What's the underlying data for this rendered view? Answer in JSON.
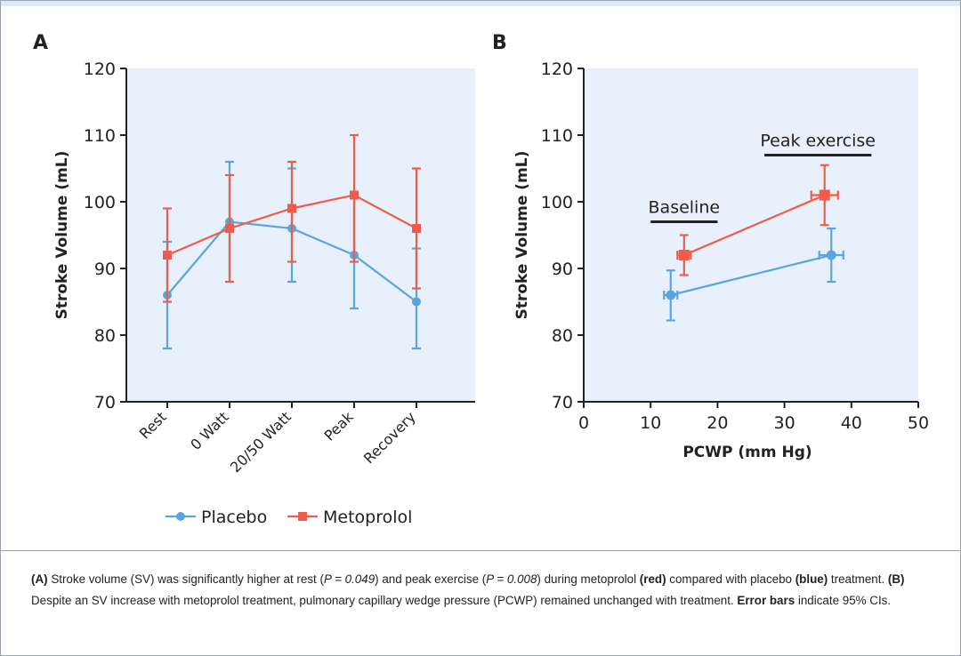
{
  "colors": {
    "placebo": "#5aa6dc",
    "metoprolol": "#ee5c4a",
    "plot_bg": "#e8f1fb",
    "axis": "#222222"
  },
  "chart_data": [
    {
      "panel": "A",
      "type": "line",
      "ylabel": "Stroke Volume (mL)",
      "xlabel": "",
      "ylim": [
        70,
        120
      ],
      "yticks": [
        70,
        80,
        90,
        100,
        110,
        120
      ],
      "categories": [
        "Rest",
        "0 Watt",
        "20/50 Watt",
        "Peak",
        "Recovery"
      ],
      "series": [
        {
          "name": "Placebo",
          "color_key": "placebo",
          "marker": "circle",
          "values": [
            86,
            97,
            96,
            92,
            85
          ],
          "err_low": [
            78,
            88,
            88,
            84,
            78
          ],
          "err_high": [
            94,
            106,
            105,
            101,
            93
          ]
        },
        {
          "name": "Metoprolol",
          "color_key": "metoprolol",
          "marker": "square",
          "values": [
            92,
            96,
            99,
            101,
            96
          ],
          "err_low": [
            85,
            88,
            91,
            91,
            87
          ],
          "err_high": [
            99,
            104,
            106,
            110,
            105
          ]
        }
      ],
      "legend": {
        "position": "bottom",
        "entries": [
          "Placebo",
          "Metoprolol"
        ]
      }
    },
    {
      "panel": "B",
      "type": "scatter",
      "ylabel": "Stroke Volume (mL)",
      "xlabel": "PCWP (mm Hg)",
      "xlim": [
        0,
        50
      ],
      "xticks": [
        0,
        10,
        20,
        30,
        40,
        50
      ],
      "ylim": [
        70,
        120
      ],
      "yticks": [
        70,
        80,
        90,
        100,
        110,
        120
      ],
      "series": [
        {
          "name": "Placebo",
          "color_key": "placebo",
          "marker": "circle",
          "points": [
            {
              "x": 13,
              "y": 86,
              "x_err": [
                12,
                14
              ],
              "y_err": [
                82.2,
                89.7
              ]
            },
            {
              "x": 37,
              "y": 92,
              "x_err": [
                35.2,
                38.8
              ],
              "y_err": [
                88,
                96
              ]
            }
          ]
        },
        {
          "name": "Metoprolol",
          "color_key": "metoprolol",
          "marker": "square",
          "points": [
            {
              "x": 15,
              "y": 92,
              "x_err": [
                14,
                16
              ],
              "y_err": [
                89,
                95
              ]
            },
            {
              "x": 36,
              "y": 101,
              "x_err": [
                34,
                38
              ],
              "y_err": [
                96.5,
                105.5
              ]
            }
          ]
        }
      ],
      "annotations": [
        {
          "label": "Baseline",
          "x_range": [
            10,
            20
          ],
          "y": 97
        },
        {
          "label": "Peak exercise",
          "x_range": [
            27,
            43
          ],
          "y": 107
        }
      ]
    }
  ],
  "caption": {
    "a_tag": "(A)",
    "a_text1": " Stroke volume (SV) was significantly higher at rest (",
    "a_p1": "P = 0.049",
    "a_text2": ") and peak exercise (",
    "a_p2": "P = 0.008",
    "a_text3": ") during metoprolol ",
    "red": "(red)",
    "a_text4": " compared with placebo ",
    "blue": "(blue)",
    "a_text5": " treatment. ",
    "b_tag": "(B)",
    "b_text": " Despite an SV increase with metoprolol treatment, pulmonary capillary wedge pressure (PCWP) remained unchanged with treatment. ",
    "eb": "Error bars",
    "eb_text": " indicate 95% CIs."
  }
}
